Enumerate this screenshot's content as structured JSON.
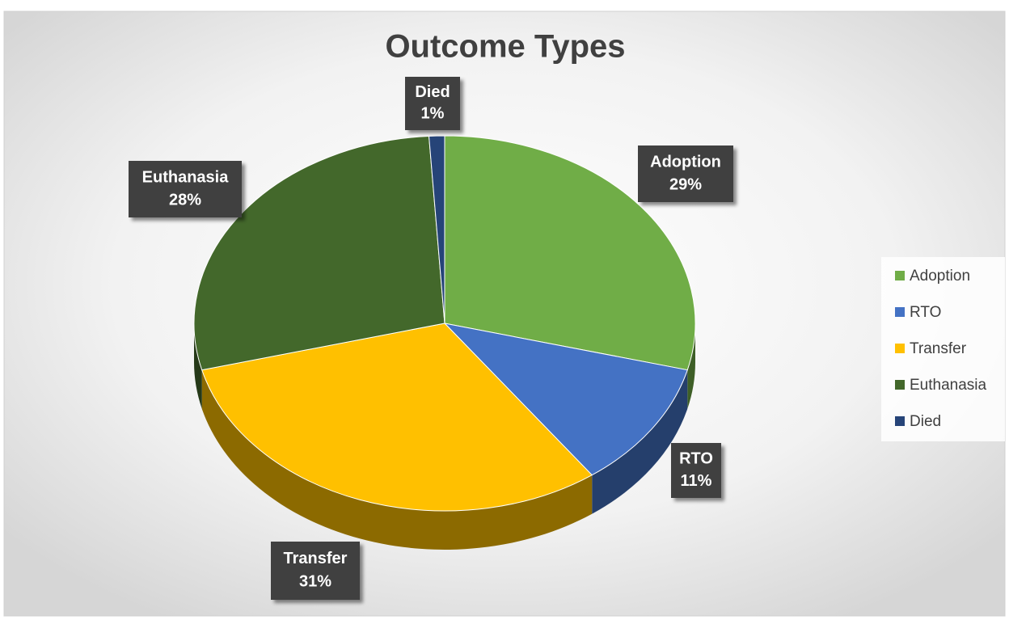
{
  "chart_data": {
    "type": "pie",
    "title": "Outcome Types",
    "categories": [
      "Adoption",
      "RTO",
      "Transfer",
      "Euthanasia",
      "Died"
    ],
    "values": [
      29,
      11,
      31,
      28,
      1
    ],
    "value_labels": [
      "29%",
      "11%",
      "31%",
      "28%",
      "1%"
    ],
    "colors": [
      "#70ad47",
      "#4472c4",
      "#ffc000",
      "#43682b",
      "#264478"
    ],
    "legend": "right"
  }
}
